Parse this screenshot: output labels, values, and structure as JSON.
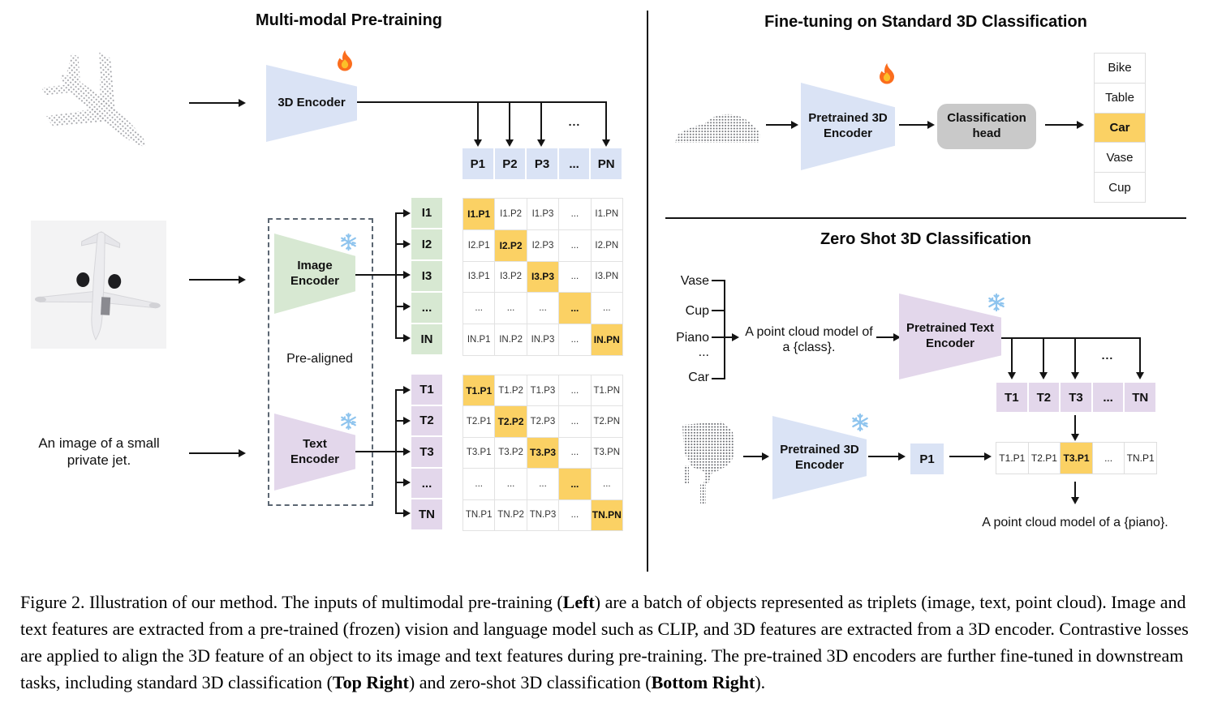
{
  "colors": {
    "blue": "#dae3f5",
    "green": "#d7e8d2",
    "purple": "#e3d7eb",
    "orange": "#fbd164",
    "grayhead": "#c9c9c9"
  },
  "icons": {
    "flame": "flame-icon",
    "snowflake": "snowflake-icon"
  },
  "left": {
    "title": "Multi-modal Pre-training",
    "encoder3d": "3D Encoder",
    "image_encoder": "Image Encoder",
    "text_encoder": "Text Encoder",
    "pre_aligned": "Pre-aligned",
    "image_text": "An image of a small private jet.",
    "dots": "...",
    "p_row": [
      "P1",
      "P2",
      "P3",
      "...",
      "PN"
    ],
    "i_col": [
      "I1",
      "I2",
      "I3",
      "...",
      "IN"
    ],
    "t_col": [
      "T1",
      "T2",
      "T3",
      "...",
      "TN"
    ],
    "i_matrix": [
      [
        "I1.P1",
        "I1.P2",
        "I1.P3",
        "...",
        "I1.PN"
      ],
      [
        "I2.P1",
        "I2.P2",
        "I2.P3",
        "...",
        "I2.PN"
      ],
      [
        "I3.P1",
        "I3.P2",
        "I3.P3",
        "...",
        "I3.PN"
      ],
      [
        "...",
        "...",
        "...",
        "...",
        "..."
      ],
      [
        "IN.P1",
        "IN.P2",
        "IN.P3",
        "...",
        "IN.PN"
      ]
    ],
    "t_matrix": [
      [
        "T1.P1",
        "T1.P2",
        "T1.P3",
        "...",
        "T1.PN"
      ],
      [
        "T2.P1",
        "T2.P2",
        "T2.P3",
        "...",
        "T2.PN"
      ],
      [
        "T3.P1",
        "T3.P2",
        "T3.P3",
        "...",
        "T3.PN"
      ],
      [
        "...",
        "...",
        "...",
        "...",
        "..."
      ],
      [
        "TN.P1",
        "TN.P2",
        "TN.P3",
        "...",
        "TN.PN"
      ]
    ]
  },
  "finetune": {
    "title": "Fine-tuning on Standard 3D Classification",
    "encoder": "Pretrained 3D Encoder",
    "head": "Classification head",
    "classes": [
      "Bike",
      "Table",
      "Car",
      "Vase",
      "Cup"
    ],
    "highlight_index": 2
  },
  "zeroshot": {
    "title": "Zero Shot 3D Classification",
    "classes": [
      "Vase",
      "Cup",
      "Piano",
      "...",
      "Car"
    ],
    "prompt": [
      "A point cloud model of",
      "a {class}."
    ],
    "text_encoder": "Pretrained Text Encoder",
    "encoder3d": "Pretrained 3D Encoder",
    "p1": "P1",
    "dots": "...",
    "t_row": [
      "T1",
      "T2",
      "T3",
      "...",
      "TN"
    ],
    "sim_row": [
      "T1.P1",
      "T2.P1",
      "T3.P1",
      "...",
      "TN.P1"
    ],
    "sim_highlight_index": 2,
    "result": "A point cloud model of a {piano}."
  },
  "caption": {
    "segments": [
      {
        "t": "Figure 2. Illustration of our method.  The inputs of multimodal pre-training ("
      },
      {
        "t": "Left",
        "b": true
      },
      {
        "t": ") are a batch of objects represented as triplets (image, text, point cloud).  Image and text features are extracted from a pre-trained (frozen) vision and language model such as CLIP, and 3D features are extracted from a 3D encoder.  Contrastive losses are applied to align the 3D feature of an object to its image and text features during pre-training.  The pre-trained 3D encoders are further fine-tuned in downstream tasks, including standard 3D classification ("
      },
      {
        "t": "Top Right",
        "b": true
      },
      {
        "t": ") and zero-shot 3D classification ("
      },
      {
        "t": "Bottom Right",
        "b": true
      },
      {
        "t": ")."
      }
    ]
  }
}
